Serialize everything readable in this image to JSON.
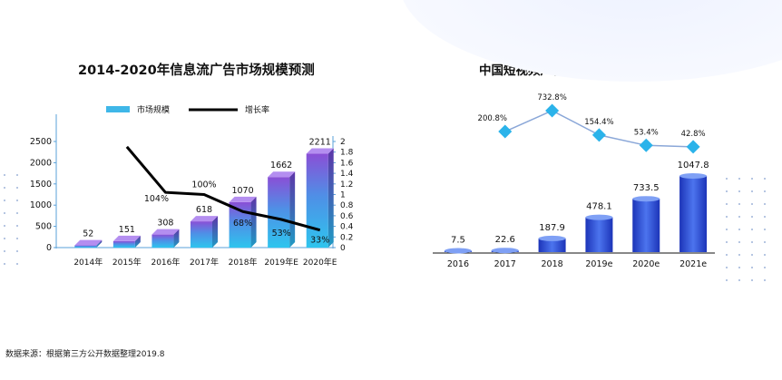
{
  "chart_data": [
    {
      "type": "bar",
      "title": "2014-2020年信息流广告市场规模预测",
      "categories": [
        "2014年",
        "2015年",
        "2016年",
        "2017年",
        "2018年",
        "2019年E",
        "2020年E"
      ],
      "series": [
        {
          "name": "市场规模",
          "axis": "left",
          "values": [
            52,
            151,
            308,
            618,
            1070,
            1662,
            2211
          ]
        },
        {
          "name": "增长率",
          "axis": "right",
          "type": "line",
          "values": [
            null,
            1.9,
            1.04,
            1.0,
            0.68,
            0.53,
            0.33
          ]
        }
      ],
      "value_labels": [
        "52",
        "151",
        "308",
        "618",
        "1070",
        "1662",
        "2211"
      ],
      "rate_labels": [
        "",
        "",
        "104%",
        "100%",
        "68%",
        "53%",
        "33%"
      ],
      "ylim": [
        0,
        2500
      ],
      "yticks": [
        "0",
        "500",
        "1000",
        "1500",
        "2000",
        "2500"
      ],
      "y2lim": [
        0,
        2
      ],
      "y2ticks": [
        "0",
        "0.2",
        "0.4",
        "0.6",
        "0.8",
        "1",
        "1.2",
        "1.4",
        "1.6",
        "1.8",
        "2"
      ],
      "legend": [
        "市场规模",
        "增长率"
      ],
      "legend_position": "top-center"
    },
    {
      "type": "bar",
      "title": "中国短视频广告市场规模及预测",
      "categories": [
        "2016",
        "2017",
        "2018",
        "2019e",
        "2020e",
        "2021e"
      ],
      "series": [
        {
          "name": "市场规模",
          "values": [
            7.5,
            22.6,
            187.9,
            478.1,
            733.5,
            1047.8
          ]
        },
        {
          "name": "增长率",
          "type": "line",
          "values": [
            null,
            2.008,
            7.328,
            1.544,
            0.534,
            0.428
          ]
        }
      ],
      "value_labels": [
        "7.5",
        "22.6",
        "187.9",
        "478.1",
        "733.5",
        "1047.8"
      ],
      "rate_labels": [
        "",
        "200.8%",
        "732.8%",
        "154.4%",
        "53.4%",
        "42.8%"
      ],
      "ylim": [
        0,
        1100
      ]
    }
  ],
  "source_note": "数据来源：根据第三方公开数据整理2019.8",
  "colors": {
    "bar_top": "#8a4fd6",
    "bar_bottom": "#2ec5ee",
    "bar_blue_dark": "#1f3fc8",
    "bar_blue_light": "#4f79f0",
    "line_dark": "#000000",
    "diamond": "#2bb3ea",
    "line_light": "#8aa7d8"
  }
}
